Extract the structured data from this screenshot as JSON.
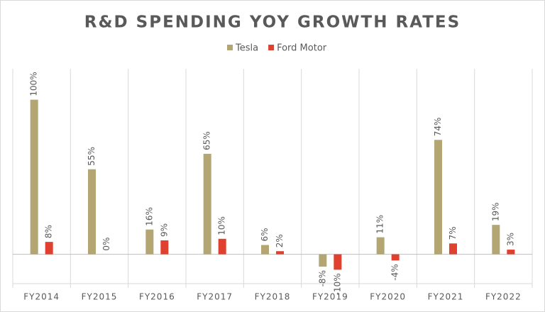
{
  "chart_data": {
    "type": "bar",
    "title": "R&D SPENDING YOY GROWTH RATES",
    "categories": [
      "FY2014",
      "FY2015",
      "FY2016",
      "FY2017",
      "FY2018",
      "FY2019",
      "FY2020",
      "FY2021",
      "FY2022"
    ],
    "series": [
      {
        "name": "Tesla",
        "color": "#b3a672",
        "values": [
          100,
          55,
          16,
          65,
          6,
          -8,
          11,
          74,
          19
        ],
        "value_labels": [
          "100%",
          "55%",
          "16%",
          "65%",
          "6%",
          "-8%",
          "11%",
          "74%",
          "19%"
        ]
      },
      {
        "name": "Ford Motor",
        "color": "#e0402f",
        "values": [
          8,
          0,
          9,
          10,
          2,
          -10,
          -4,
          7,
          3
        ],
        "value_labels": [
          "8%",
          "0%",
          "9%",
          "10%",
          "2%",
          "-10%",
          "-4%",
          "7%",
          "3%"
        ]
      }
    ],
    "ylim": [
      -19,
      120
    ],
    "legend": "top"
  }
}
